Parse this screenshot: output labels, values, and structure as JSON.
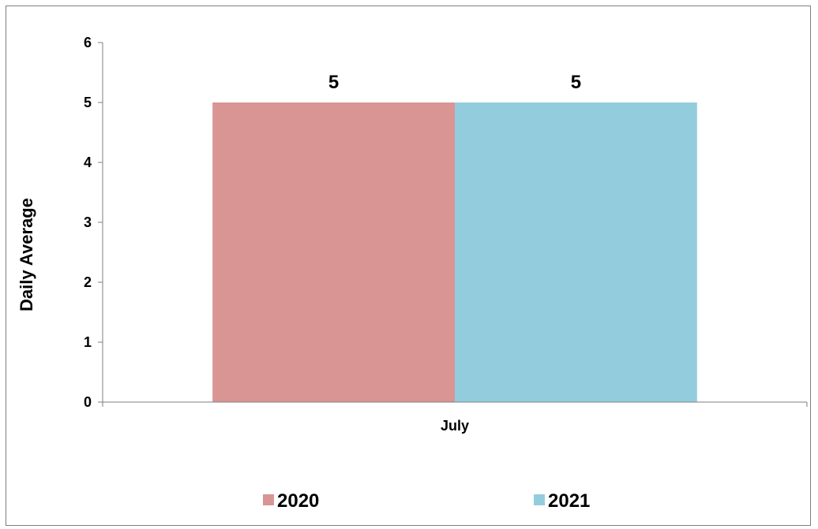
{
  "chart_data": {
    "type": "bar",
    "categories": [
      "July"
    ],
    "series": [
      {
        "name": "2020",
        "values": [
          5
        ],
        "color": "#d99594"
      },
      {
        "name": "2021",
        "values": [
          5
        ],
        "color": "#93cddd"
      }
    ],
    "ylabel": "Daily Average",
    "xlabel": "",
    "ylim": [
      0,
      6
    ],
    "yticks": [
      "0",
      "1",
      "2",
      "3",
      "4",
      "5",
      "6"
    ],
    "data_labels": true,
    "grid": false,
    "legend_position": "bottom"
  }
}
